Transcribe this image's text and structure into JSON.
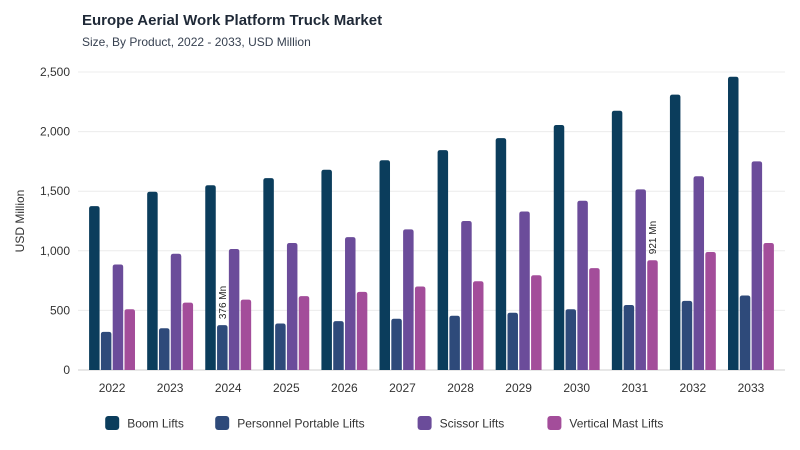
{
  "chart_data": {
    "type": "bar",
    "title": "Europe Aerial Work Platform Truck Market",
    "subtitle": "Size, By Product, 2022 - 2033, USD Million",
    "ylabel": "USD Million",
    "xlabel": "",
    "ylim": [
      0,
      2500
    ],
    "yticks": [
      0,
      500,
      1000,
      1500,
      2000,
      2500
    ],
    "ytick_labels": [
      "0",
      "500",
      "1,000",
      "1,500",
      "2,000",
      "2,500"
    ],
    "grid": true,
    "legend_position": "bottom",
    "categories": [
      "2022",
      "2023",
      "2024",
      "2025",
      "2026",
      "2027",
      "2028",
      "2029",
      "2030",
      "2031",
      "2032",
      "2033"
    ],
    "series": [
      {
        "name": "Boom Lifts",
        "color": "#0b3d5c",
        "values": [
          1375,
          1495,
          1550,
          1610,
          1680,
          1760,
          1845,
          1945,
          2055,
          2175,
          2310,
          2460
        ]
      },
      {
        "name": "Personnel Portable Lifts",
        "color": "#2e4a7a",
        "values": [
          320,
          350,
          376,
          390,
          410,
          430,
          455,
          480,
          510,
          545,
          580,
          625
        ]
      },
      {
        "name": "Scissor Lifts",
        "color": "#6b4c9a",
        "values": [
          885,
          975,
          1015,
          1065,
          1115,
          1180,
          1250,
          1330,
          1420,
          1515,
          1625,
          1750
        ]
      },
      {
        "name": "Vertical Mast Lifts",
        "color": "#a34d9a",
        "values": [
          510,
          565,
          590,
          620,
          655,
          700,
          745,
          795,
          855,
          921,
          990,
          1065
        ]
      }
    ],
    "annotations": [
      {
        "category": "2024",
        "series": "Personnel Portable Lifts",
        "text": "376 Mn"
      },
      {
        "category": "2031",
        "series": "Vertical Mast Lifts",
        "text": "921 Mn"
      }
    ]
  }
}
